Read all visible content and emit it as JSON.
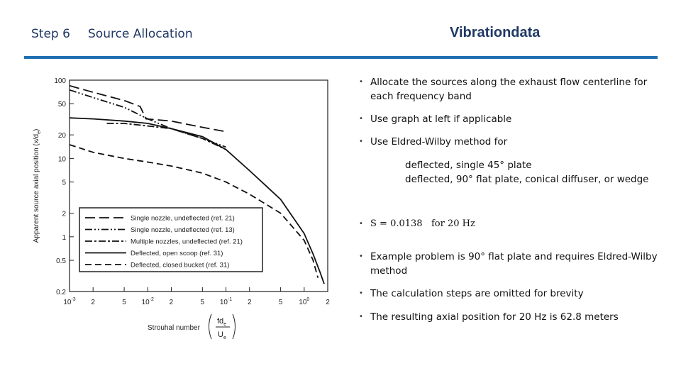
{
  "header": {
    "step": "Step 6",
    "section_title": "Source Allocation",
    "brand": "Vibrationdata",
    "accent_color": "#1f6fb3"
  },
  "chart_data": {
    "type": "line",
    "xscale": "log",
    "yscale": "log",
    "xlim": [
      0.001,
      2
    ],
    "ylim": [
      0.2,
      100
    ],
    "ylabel": "Apparent source axial position (x/d",
    "ylabel_sub": "e",
    "ylabel_tail": ")",
    "xlabel": "Strouhal number",
    "xlabel_frac_num": "fd",
    "xlabel_frac_num_sub": "e",
    "xlabel_frac_den": "U",
    "xlabel_frac_den_sub": "e",
    "x_tick_labels": [
      "10",
      "2",
      "5",
      "10",
      "2",
      "5",
      "10",
      "2",
      "5",
      "10",
      "2"
    ],
    "x_tick_exponents": [
      "-3",
      "",
      "",
      "-2",
      "",
      "",
      "-1",
      "",
      "",
      "0",
      ""
    ],
    "x_ticks": [
      0.001,
      0.002,
      0.005,
      0.01,
      0.02,
      0.05,
      0.1,
      0.2,
      0.5,
      1,
      2
    ],
    "y_tick_labels": [
      "100",
      "50",
      "20",
      "10",
      "5",
      "2",
      "1",
      "0.5",
      "0.2"
    ],
    "y_ticks": [
      100,
      50,
      20,
      10,
      5,
      2,
      1,
      0.5,
      0.2
    ],
    "grid": false,
    "legend_position": "bottom-right",
    "series": [
      {
        "name": "Single nozzle, undeflected (ref. 21)",
        "style": "dashed-long",
        "x": [
          0.001,
          0.002,
          0.005,
          0.008,
          0.0095,
          0.02,
          0.05,
          0.1
        ],
        "y": [
          85,
          70,
          55,
          46,
          32,
          30,
          25,
          22
        ]
      },
      {
        "name": "Single nozzle, undeflected (ref. 13)",
        "style": "dash-dot-dot",
        "x": [
          0.001,
          0.002,
          0.005,
          0.01,
          0.02,
          0.05,
          0.1
        ],
        "y": [
          75,
          60,
          45,
          32,
          24,
          18,
          14
        ]
      },
      {
        "name": "Multiple nozzles, undeflected (ref. 21)",
        "style": "dash-dot",
        "x": [
          0.003,
          0.005,
          0.01,
          0.02,
          0.05,
          0.1
        ],
        "y": [
          28,
          28,
          26,
          24,
          18,
          13
        ]
      },
      {
        "name": "Deflected, open scoop (ref. 31)",
        "style": "solid",
        "x": [
          0.001,
          0.002,
          0.005,
          0.01,
          0.02,
          0.05,
          0.1,
          0.2,
          0.5,
          1,
          1.3,
          1.6,
          1.8
        ],
        "y": [
          33,
          32,
          30,
          28,
          24,
          19,
          13,
          7,
          3,
          1.1,
          0.6,
          0.35,
          0.25
        ]
      },
      {
        "name": "Deflected, closed bucket (ref. 31)",
        "style": "dashed",
        "x": [
          0.001,
          0.002,
          0.005,
          0.01,
          0.02,
          0.05,
          0.1,
          0.2,
          0.5,
          1,
          1.3,
          1.5
        ],
        "y": [
          15,
          12,
          10,
          9,
          8,
          6.5,
          5,
          3.5,
          2,
          0.9,
          0.5,
          0.3
        ]
      }
    ]
  },
  "bullets": {
    "b1": "Allocate the sources along the exhaust flow centerline for each frequency band",
    "b2": "Use graph at left if applicable",
    "b3": "Use Eldred-Wilby method for",
    "sub1": "deflected, single 45° plate",
    "sub2": "deflected, 90° flat plate, conical diffuser, or wedge",
    "b4": "S = 0.0138   for 20 Hz",
    "b5": "Example problem is 90° flat plate and requires Eldred-Wilby method",
    "b6": "The calculation steps are omitted for brevity",
    "b7": "The resulting axial position for 20 Hz is 62.8 meters",
    "bullet_glyph": "•"
  }
}
